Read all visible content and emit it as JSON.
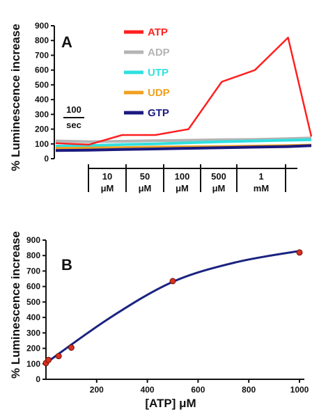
{
  "chart_data": [
    {
      "panel_label": "A",
      "type": "line",
      "ylabel": "% Luminescence increase",
      "ylim": [
        0,
        900
      ],
      "yticks": [
        0,
        100,
        200,
        300,
        400,
        500,
        600,
        700,
        800,
        900
      ],
      "scale_bar_label": [
        "100",
        "sec"
      ],
      "x_time_sec": [
        0,
        100,
        200,
        300,
        400,
        500,
        600,
        700,
        770
      ],
      "series": [
        {
          "name": "ATP",
          "color": "#ff2020",
          "values": [
            105,
            95,
            160,
            160,
            200,
            520,
            600,
            820,
            150
          ]
        },
        {
          "name": "ADP",
          "color": "#b4b4b4",
          "values": [
            120,
            115,
            118,
            122,
            125,
            128,
            130,
            135,
            140
          ]
        },
        {
          "name": "UTP",
          "color": "#30e0e0",
          "values": [
            85,
            88,
            95,
            100,
            108,
            115,
            120,
            125,
            128
          ]
        },
        {
          "name": "UDP",
          "color": "#f0a020",
          "values": [
            70,
            72,
            75,
            78,
            80,
            82,
            85,
            88,
            92
          ]
        },
        {
          "name": "GTP",
          "color": "#1a1a80",
          "values": [
            55,
            58,
            62,
            66,
            70,
            74,
            78,
            82,
            88
          ]
        }
      ],
      "concentration_steps": [
        {
          "value": "10",
          "unit": "μM"
        },
        {
          "value": "50",
          "unit": "μM"
        },
        {
          "value": "100",
          "unit": "μM"
        },
        {
          "value": "500",
          "unit": "μM"
        },
        {
          "value": "1",
          "unit": "mM"
        }
      ]
    },
    {
      "panel_label": "B",
      "type": "scatter",
      "ylabel": "% Luminescence increase",
      "xlabel": "[ATP] μM",
      "xlim": [
        0,
        1000
      ],
      "ylim": [
        0,
        900
      ],
      "xticks": [
        200,
        400,
        600,
        800,
        1000
      ],
      "yticks": [
        0,
        100,
        200,
        300,
        400,
        500,
        600,
        700,
        800,
        900
      ],
      "points": [
        {
          "x": 0,
          "y": 105
        },
        {
          "x": 10,
          "y": 125
        },
        {
          "x": 50,
          "y": 150
        },
        {
          "x": 100,
          "y": 205
        },
        {
          "x": 500,
          "y": 635
        },
        {
          "x": 1000,
          "y": 820
        }
      ],
      "fit": {
        "color": "#1a2380",
        "x": [
          0,
          250,
          500,
          750,
          1000
        ],
        "y": [
          105,
          395,
          630,
          757,
          830
        ]
      },
      "point_color": "#d83020"
    }
  ]
}
